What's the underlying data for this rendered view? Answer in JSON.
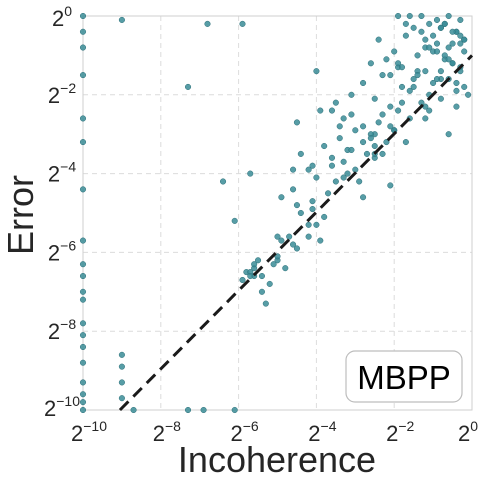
{
  "chart_data": {
    "type": "scatter",
    "title": "",
    "xlabel": "Incoherence",
    "ylabel": "Error",
    "x_scale": "log2",
    "y_scale": "log2",
    "xlim": [
      -10,
      0
    ],
    "ylim": [
      -10,
      0
    ],
    "x_ticks": [
      -10,
      -8,
      -6,
      -4,
      -2,
      0
    ],
    "y_ticks": [
      -10,
      -8,
      -6,
      -4,
      -2,
      0
    ],
    "tick_base": "2",
    "grid": true,
    "legend": {
      "label": "MBPP",
      "placement": "bottom-right"
    },
    "reference_line": {
      "style": "dashed",
      "color": "#1a1a1a",
      "slope": 1,
      "intercept": 0
    },
    "point_color": "#3a8c96",
    "series": [
      {
        "x_log2": [
          -10,
          -10,
          -10,
          -10,
          -10,
          -10,
          -10,
          -10,
          -10,
          -10,
          -10,
          -10,
          -10,
          -10,
          -10,
          -10,
          -10,
          -10,
          -10,
          -10,
          -9.0,
          -9.0,
          -9.0,
          -9.0,
          -8.7,
          -7.3,
          -6.9,
          -6.1,
          -9.0,
          -7.3,
          -5.7,
          -4.5,
          -3.9,
          -3.4,
          -3.1,
          -1.5,
          -5.9,
          -1.1,
          -0.8,
          -0.3,
          -0.2,
          -4.0,
          -3.6,
          -3.5,
          -3.1,
          -3.3,
          -2.5,
          -2.1,
          -1.6,
          -1.9,
          -1.2,
          -0.7,
          -1.7,
          -2.4,
          -2.0,
          -1.2,
          -0.4,
          -2.8,
          -2.3,
          -1.9,
          -0.6,
          -0.3,
          -1.0,
          -0.4,
          -0.2,
          -0.8,
          -2.8,
          -2.5,
          -2.0,
          -1.6,
          -1.2,
          -2.2,
          -1.8,
          -1.4,
          -0.9,
          -0.5,
          -2.6,
          -2.1,
          -1.7,
          -1.3,
          -1.5,
          -1.1,
          -0.7,
          -0.3,
          -0.6,
          -0.9,
          -0.5,
          -1.4,
          -1.8,
          -1.0,
          -0.8,
          -0.4,
          -1.3,
          -1.6,
          -1.9,
          -1.2,
          -0.9,
          -0.6,
          -0.3,
          -0.2,
          -0.5,
          -0.8,
          -1.1,
          -1.4,
          -0.7,
          -1.0,
          -0.6,
          -0.4,
          -6.8,
          -4.6,
          -4.4,
          -4.2,
          -4.0,
          -3.8,
          -3.6,
          -3.4,
          -3.2,
          -3.0,
          -2.8,
          -2.6,
          -2.5,
          -3.7,
          -3.3,
          -2.9,
          -2.3,
          -4.6,
          -4.1,
          -3.6,
          -3.1,
          -3.2,
          -2.8,
          -2.5,
          -2.2,
          -3.0,
          -2.7,
          -2.4,
          -2.1,
          -1.9,
          -2.6,
          -2.3,
          -2.0,
          -1.8,
          -4.2,
          -3.9,
          -4.1,
          -5.0,
          -4.8,
          -4.5,
          -4.6,
          -4.2,
          -4.4,
          -4.7,
          -5.1,
          -5.4,
          -5.3,
          -5.6,
          -5.8,
          -5.6,
          -5.9,
          -5.6,
          -5.5,
          -5.7,
          -5.4,
          -5.2,
          -5.0,
          -4.9,
          -4.5,
          -5.7,
          -6.1,
          -6.4,
          -5.0,
          -4.0,
          -4.9,
          -4.1,
          -3.8,
          -3.5,
          -3.3,
          -2.5,
          -2.1,
          -1.7,
          -1.2,
          -0.8,
          -0.6,
          -0.4,
          -0.2,
          -0.1,
          -0.5,
          -0.3,
          -0.7,
          -1.1,
          -1.5,
          -0.9,
          -1.3
        ],
        "y_log2": [
          0,
          -0.4,
          -1.5,
          -3.2,
          -4.4,
          -5.7,
          -6.3,
          -6.6,
          -7.0,
          -7.2,
          -7.8,
          -8.1,
          -8.4,
          -8.8,
          -9.3,
          -9.6,
          -9.8,
          -10,
          -0.8,
          -2.6,
          -8.6,
          -8.9,
          -9.3,
          -9.7,
          -10,
          -10,
          -10,
          -10,
          -0.1,
          -1.8,
          -4.0,
          -2.7,
          -2.4,
          -2.8,
          -2.0,
          -1.6,
          -0.2,
          -0.2,
          -0.3,
          -0.1,
          -0.9,
          -1.4,
          -2.4,
          -2.2,
          -2.5,
          -2.6,
          -2.1,
          -2.3,
          -1.9,
          -1.3,
          -1.4,
          -1.1,
          -0.5,
          -0.6,
          -0.9,
          -0.8,
          -0.4,
          -1.7,
          -1.5,
          -1.2,
          -1.6,
          -0.7,
          -0.9,
          -0.4,
          -0.6,
          -0.3,
          -2.8,
          -3.0,
          -2.9,
          -2.6,
          -2.3,
          -1.1,
          -1.8,
          -1.4,
          -0.7,
          -1.2,
          -1.2,
          -1.5,
          -0.2,
          0,
          -0.3,
          -0.8,
          -0.2,
          -0.5,
          0,
          -0.1,
          -0.7,
          -1.0,
          -1.3,
          -1.7,
          -1.4,
          -1.9,
          -0.4,
          0,
          0,
          -0.6,
          -0.9,
          -1.1,
          -1.3,
          -0.6,
          -0.4,
          -1.6,
          -2.0,
          -1.5,
          -0.2,
          -0.5,
          -0.8,
          -1.7,
          -0.2,
          -3.9,
          -3.5,
          -3.9,
          -4.1,
          -3.3,
          -3.6,
          -3.1,
          -3.4,
          -2.9,
          -3.2,
          -3.0,
          -3.3,
          -4.5,
          -4.1,
          -4.2,
          -3.5,
          -4.4,
          -3.8,
          -3.8,
          -3.4,
          -4.0,
          -4.6,
          -3.6,
          -3.2,
          -3.9,
          -3.5,
          -2.7,
          -2.8,
          -2.4,
          -3.1,
          -2.5,
          -2.9,
          -2.2,
          -5.6,
          -5.7,
          -4.9,
          -6.2,
          -6.4,
          -5.9,
          -5.8,
          -5.3,
          -5.0,
          -5.6,
          -6.3,
          -7.0,
          -7.3,
          -6.4,
          -6.5,
          -6.6,
          -6.7,
          -6.3,
          -6.2,
          -6.5,
          -6.6,
          -6.8,
          -6.1,
          -5.7,
          -4.8,
          -6.6,
          -5.2,
          -4.2,
          -5.6,
          -5.3,
          -4.6,
          -4.7,
          -5.1,
          -4.2,
          -3.7,
          -3.5,
          -4.3,
          -3.2,
          -2.6,
          -2.1,
          -3.0,
          -2.3,
          -1.8,
          -2.0,
          -1.2,
          -1.4,
          -1.0,
          -2.4,
          -1.8,
          -1.6,
          -2.2
        ]
      }
    ]
  }
}
